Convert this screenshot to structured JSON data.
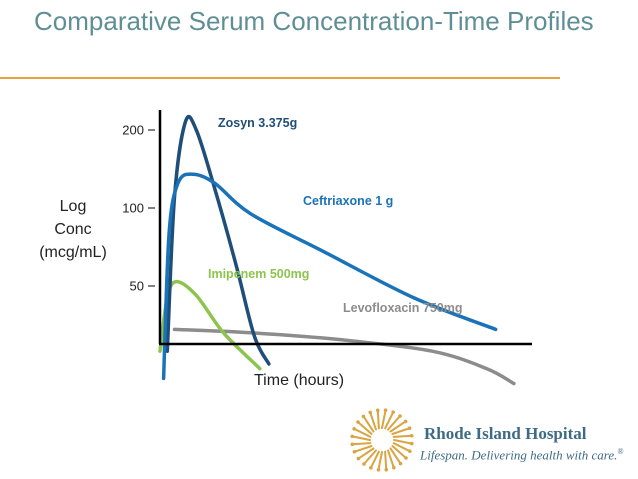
{
  "slide": {
    "title": "Comparative Serum Concentration-Time Profiles"
  },
  "logo": {
    "name": "Rhode Island Hospital",
    "tagline": "Lifespan. Delivering health with care.",
    "trademark": "®",
    "icon": "sunburst-icon",
    "color": "#3d6b85",
    "accent": "#d9a441"
  },
  "chart_data": {
    "type": "line",
    "ylabel_lines": [
      "Log",
      "Conc",
      "(mcg/mL)"
    ],
    "xlabel": "Time (hours)",
    "y_scale": "log",
    "yticks": [
      200,
      100,
      50
    ],
    "x_axis_ticks": false,
    "grid": false,
    "legend": "inline labels",
    "series": [
      {
        "name": "Zosyn 3.375g",
        "color": "#1f4e79",
        "points": [
          [
            0.4,
            28
          ],
          [
            0.8,
            110
          ],
          [
            1.4,
            215
          ],
          [
            2.0,
            200
          ],
          [
            3.0,
            120
          ],
          [
            4.2,
            60
          ],
          [
            5.2,
            32
          ],
          [
            6.0,
            25
          ]
        ]
      },
      {
        "name": "Ceftriaxone 1 g",
        "color": "#1a73b8",
        "points": [
          [
            0.2,
            22
          ],
          [
            0.5,
            80
          ],
          [
            1.0,
            125
          ],
          [
            1.8,
            135
          ],
          [
            3.0,
            125
          ],
          [
            5.0,
            95
          ],
          [
            9.0,
            68
          ],
          [
            14.0,
            45
          ],
          [
            18.5,
            34
          ]
        ]
      },
      {
        "name": "Imipenem 500mg",
        "color": "#8dc44f",
        "points": [
          [
            0.0,
            28
          ],
          [
            0.4,
            45
          ],
          [
            0.9,
            52
          ],
          [
            2.0,
            46
          ],
          [
            3.5,
            33
          ],
          [
            5.5,
            24
          ]
        ]
      },
      {
        "name": "Levofloxacin 750mg",
        "color": "#8c8c8c",
        "points": [
          [
            0.8,
            34
          ],
          [
            5.0,
            33
          ],
          [
            10.0,
            31
          ],
          [
            15.0,
            28
          ],
          [
            18.0,
            24
          ],
          [
            19.5,
            21
          ]
        ]
      }
    ]
  }
}
